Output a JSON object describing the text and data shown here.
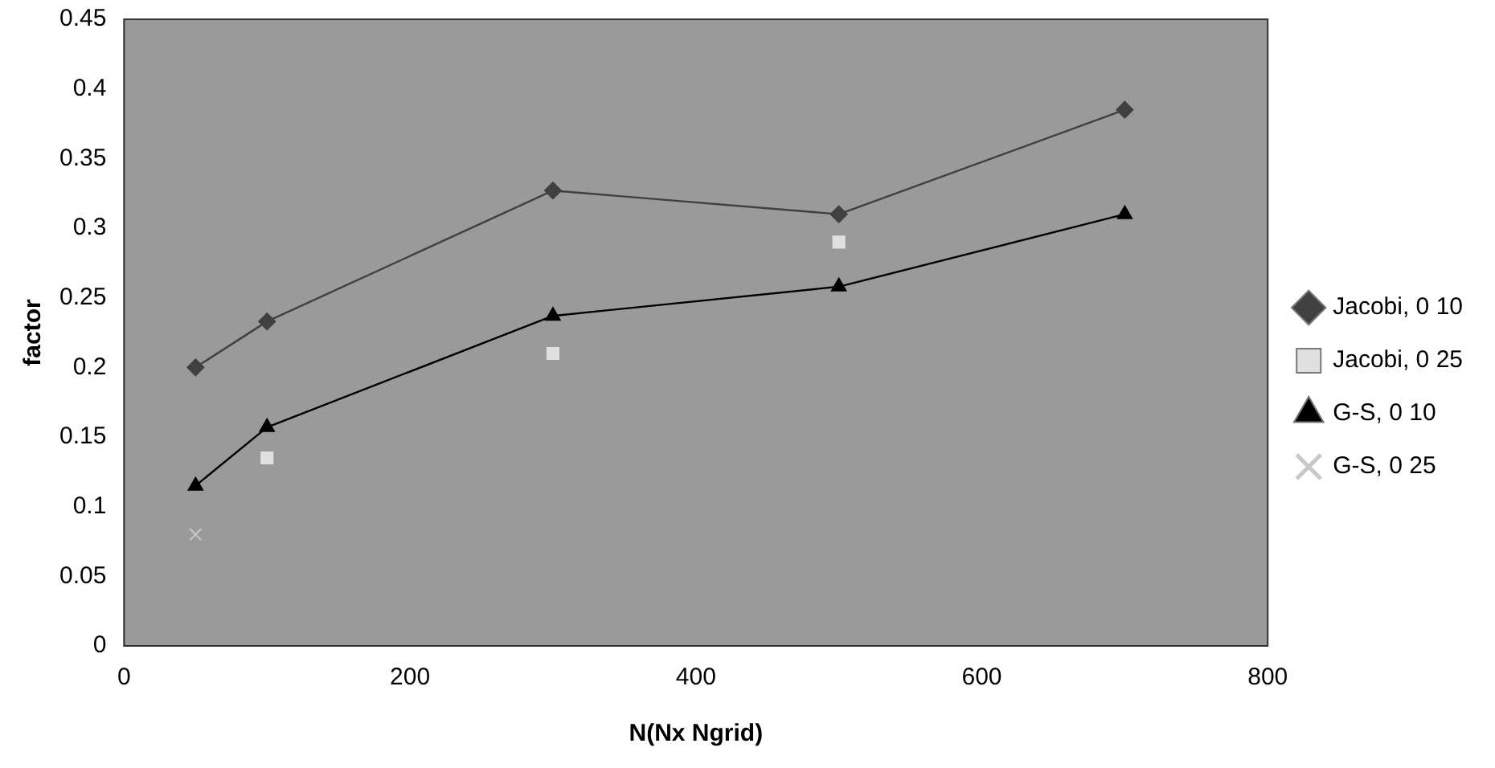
{
  "chart_data": {
    "type": "line",
    "xlabel": "N(Nx Ngrid)",
    "ylabel": "factor",
    "x": [
      50,
      100,
      300,
      500,
      700
    ],
    "series": [
      {
        "name": "Jacobi, 0 10",
        "color": "#404040",
        "marker": "diamond",
        "values": [
          0.2,
          0.233,
          0.327,
          0.31,
          0.385
        ]
      },
      {
        "name": "Jacobi, 0 25",
        "color": "#e0e0e0",
        "type": "scatter",
        "marker": "square",
        "values": [
          null,
          0.135,
          0.21,
          0.29,
          null
        ]
      },
      {
        "name": "G-S, 0 10",
        "color": "#000000",
        "marker": "triangle",
        "values": [
          0.115,
          0.157,
          0.237,
          0.258,
          0.31
        ]
      },
      {
        "name": "G-S, 0 25",
        "color": "#c8c8c8",
        "type": "scatter",
        "marker": "cross",
        "values": [
          0.08,
          null,
          null,
          null,
          null
        ]
      }
    ],
    "xlim": [
      0,
      800
    ],
    "xticks": [
      0,
      200,
      400,
      600,
      800
    ],
    "ylim": [
      0,
      0.45
    ],
    "yticks": [
      0,
      0.05,
      0.1,
      0.15,
      0.2,
      0.25,
      0.3,
      0.35,
      0.4,
      0.45
    ],
    "grid": false,
    "legend": "right"
  }
}
